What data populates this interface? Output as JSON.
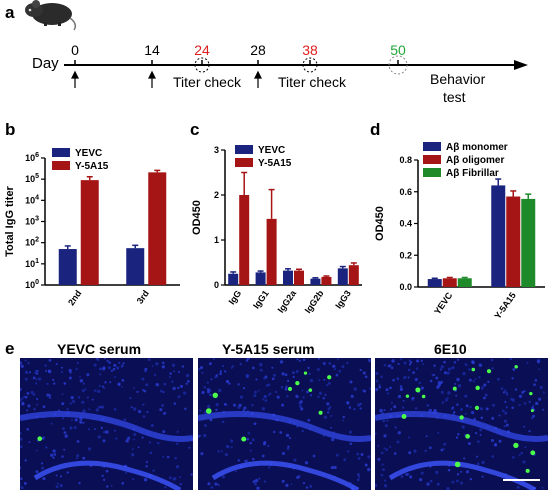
{
  "panels": {
    "a": "a",
    "b": "b",
    "c": "c",
    "d": "d",
    "e": "e"
  },
  "timeline": {
    "day_label": "Day",
    "ticks": [
      {
        "day": "0",
        "color": "#000000"
      },
      {
        "day": "14",
        "color": "#000000"
      },
      {
        "day": "24",
        "color": "#e02020"
      },
      {
        "day": "28",
        "color": "#000000"
      },
      {
        "day": "38",
        "color": "#e02020"
      },
      {
        "day": "50",
        "color": "#21a63a"
      }
    ],
    "titer_check": "Titer check",
    "behavior_line1": "Behavior",
    "behavior_line2": "test"
  },
  "colors": {
    "yevc": "#1a237e",
    "y5a15": "#a61515",
    "fibrillar": "#1f8a2a"
  },
  "chart_data": [
    {
      "type": "bar",
      "categories": [
        "2nd",
        "3rd"
      ],
      "ylabel": "Total IgG titer",
      "yscale": "log",
      "ylim": [
        1,
        1000000
      ],
      "yticks": [
        {
          "value": 1,
          "base": "10",
          "exp": "0"
        },
        {
          "value": 10,
          "base": "10",
          "exp": "1"
        },
        {
          "value": 100,
          "base": "10",
          "exp": "2"
        },
        {
          "value": 1000,
          "base": "10",
          "exp": "3"
        },
        {
          "value": 10000,
          "base": "10",
          "exp": "4"
        },
        {
          "value": 100000,
          "base": "10",
          "exp": "5"
        },
        {
          "value": 1000000,
          "base": "10",
          "exp": "6"
        }
      ],
      "legend_position": "top-left",
      "series": [
        {
          "name": "YEVC",
          "color": "#1a237e",
          "values": [
            50,
            55
          ],
          "errors": [
            20,
            20
          ]
        },
        {
          "name": "Y-5A15",
          "color": "#a61515",
          "values": [
            90000,
            210000
          ],
          "errors": [
            40000,
            50000
          ]
        }
      ]
    },
    {
      "type": "bar",
      "categories": [
        "IgG",
        "IgG1",
        "IgG2a",
        "IgG2b",
        "IgG3"
      ],
      "ylabel": "OD450",
      "ylim": [
        0,
        3
      ],
      "yticks": [
        "0",
        "1",
        "2",
        "3"
      ],
      "legend_position": "top-left",
      "series": [
        {
          "name": "YEVC",
          "color": "#1a237e",
          "values": [
            0.25,
            0.28,
            0.32,
            0.14,
            0.37
          ],
          "errors": [
            0.04,
            0.03,
            0.04,
            0.02,
            0.04
          ]
        },
        {
          "name": "Y-5A15",
          "color": "#a61515",
          "values": [
            2.0,
            1.47,
            0.32,
            0.18,
            0.44
          ],
          "errors": [
            0.5,
            0.65,
            0.03,
            0.02,
            0.05
          ]
        }
      ]
    },
    {
      "type": "bar",
      "categories": [
        "YEVC",
        "Y-5A15"
      ],
      "ylabel": "OD450",
      "ylim": [
        0,
        0.8
      ],
      "yticks": [
        "0.0",
        "0.2",
        "0.4",
        "0.6",
        "0.8"
      ],
      "legend_position": "top-left",
      "series": [
        {
          "name": "Aβ  monomer",
          "color": "#1a237e",
          "values": [
            0.05,
            0.64
          ],
          "errors": [
            0.005,
            0.04
          ]
        },
        {
          "name": "Aβ  oligomer",
          "color": "#a61515",
          "values": [
            0.055,
            0.57
          ],
          "errors": [
            0.005,
            0.035
          ]
        },
        {
          "name": "Aβ  Fibrillar",
          "color": "#1f8a2a",
          "values": [
            0.055,
            0.555
          ],
          "errors": [
            0.005,
            0.03
          ]
        }
      ]
    }
  ],
  "micrographs": [
    {
      "label": "YEVC serum",
      "green_dots": 1
    },
    {
      "label": "Y-5A15 serum",
      "green_dots": 9
    },
    {
      "label": "6E10",
      "green_dots": 18
    }
  ]
}
